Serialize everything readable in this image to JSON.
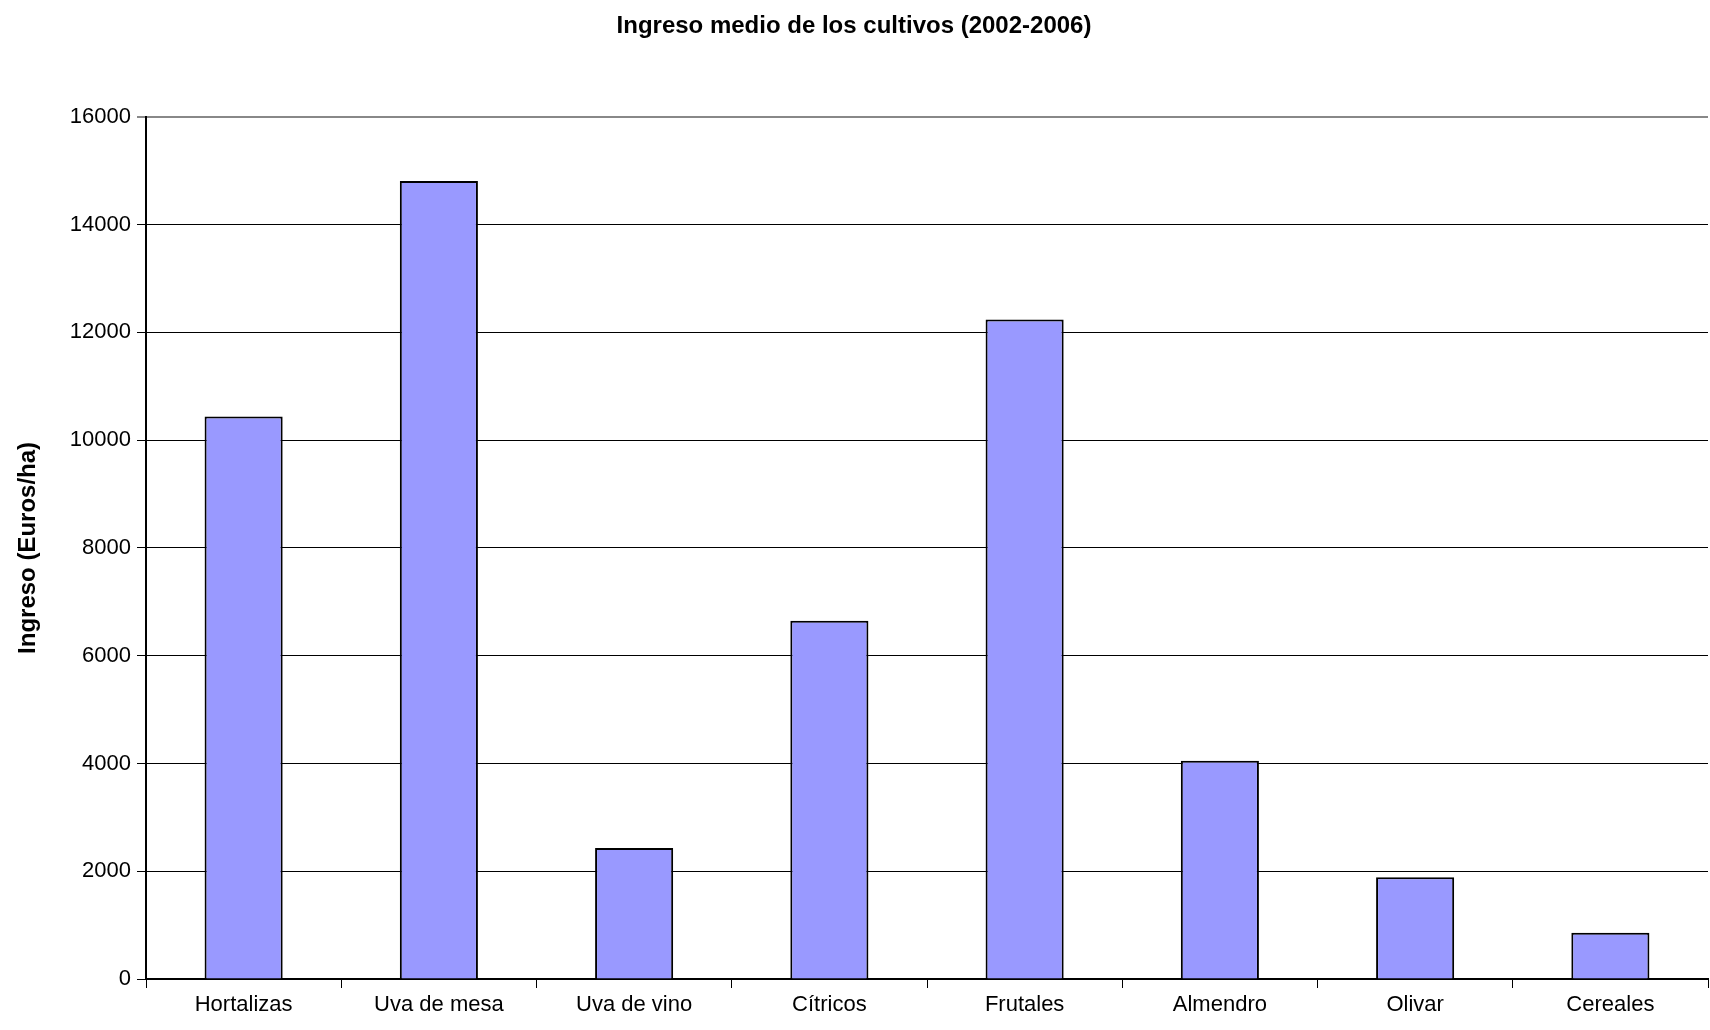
{
  "chart_data": {
    "type": "bar",
    "title": "Ingreso medio de los cultivos (2002-2006)",
    "ylabel": "Ingreso (Euros/ha)",
    "categories": [
      "Hortalizas",
      "Uva de mesa",
      "Uva de vino",
      "Cítricos",
      "Frutales",
      "Almendro",
      "Olivar",
      "Cereales"
    ],
    "values": [
      10440,
      14810,
      2430,
      6650,
      12240,
      4050,
      1890,
      860
    ],
    "color": "#9999ff",
    "ylim": [
      0,
      16000
    ],
    "yticks": [
      0,
      2000,
      4000,
      6000,
      8000,
      10000,
      12000,
      14000,
      16000
    ],
    "grid": "y",
    "legend": false
  }
}
